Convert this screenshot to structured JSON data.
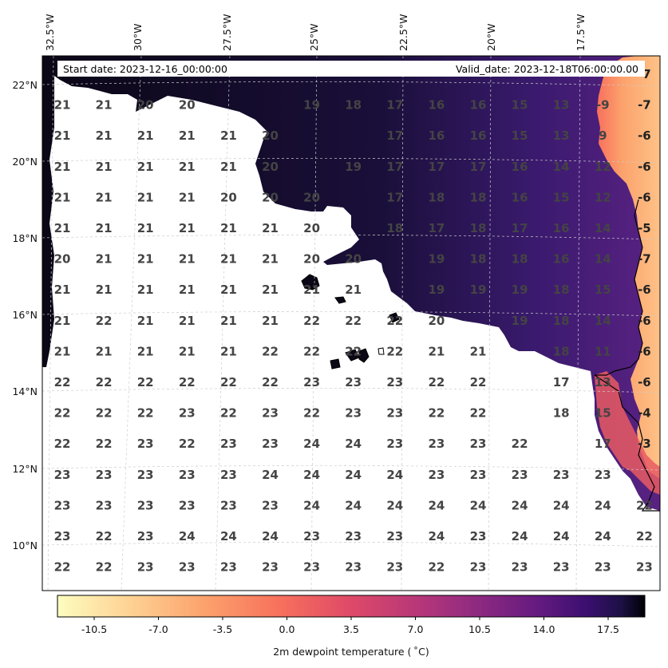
{
  "header": {
    "start_date": "Start date: 2023-12-16_00:00:00",
    "valid_date": "Valid_date: 2023-12-18T06:00:00.00"
  },
  "lon_labels": [
    "32.5°W",
    "30°W",
    "27.5°W",
    "25°W",
    "22.5°W",
    "20°W",
    "17.5°W"
  ],
  "lat_labels": [
    "22°N",
    "20°N",
    "18°N",
    "16°N",
    "14°N",
    "12°N",
    "10°N"
  ],
  "colorbar": {
    "label": "2m dewpoint temperature ($^\\circ$C)",
    "label_display": "2m dewpoint temperature ( ˚C)",
    "ticks": [
      "-10.5",
      "-7.0",
      "-3.5",
      "0.0",
      "3.5",
      "7.0",
      "10.5",
      "14.0",
      "17.5"
    ],
    "tick_values": [
      -10.5,
      -7.0,
      -3.5,
      0.0,
      3.5,
      7.0,
      10.5,
      14.0,
      17.5
    ],
    "range": [
      -12.5,
      19.5
    ],
    "colormap": "magma_r"
  },
  "grid_values": [
    [
      "",
      "",
      "",
      "",
      "",
      "",
      "",
      "",
      "",
      "",
      "",
      "",
      "",
      "",
      "-7"
    ],
    [
      "21",
      "21",
      "20",
      "20",
      "",
      "",
      "19",
      "18",
      "17",
      "16",
      "16",
      "15",
      "13",
      "-9",
      "-7"
    ],
    [
      "21",
      "21",
      "21",
      "21",
      "21",
      "20",
      "",
      "",
      "17",
      "16",
      "16",
      "15",
      "13",
      "9",
      "-6"
    ],
    [
      "21",
      "21",
      "21",
      "21",
      "21",
      "20",
      "",
      "19",
      "17",
      "17",
      "17",
      "16",
      "14",
      "12",
      "-6"
    ],
    [
      "21",
      "21",
      "21",
      "21",
      "20",
      "20",
      "20",
      "",
      "17",
      "18",
      "18",
      "16",
      "15",
      "12",
      "-6"
    ],
    [
      "21",
      "21",
      "21",
      "21",
      "21",
      "21",
      "20",
      "",
      "18",
      "17",
      "18",
      "17",
      "16",
      "14",
      "-5"
    ],
    [
      "20",
      "21",
      "21",
      "21",
      "21",
      "21",
      "20",
      "20",
      "",
      "19",
      "18",
      "18",
      "16",
      "14",
      "-7"
    ],
    [
      "21",
      "21",
      "21",
      "21",
      "21",
      "21",
      "21",
      "21",
      "",
      "19",
      "19",
      "19",
      "18",
      "15",
      "-6"
    ],
    [
      "21",
      "22",
      "21",
      "21",
      "21",
      "21",
      "22",
      "22",
      "22",
      "20",
      "",
      "19",
      "18",
      "14",
      "-6"
    ],
    [
      "21",
      "21",
      "21",
      "21",
      "21",
      "22",
      "22",
      "22",
      "22",
      "21",
      "21",
      "",
      "18",
      "11",
      "-6"
    ],
    [
      "22",
      "22",
      "22",
      "22",
      "22",
      "22",
      "23",
      "23",
      "23",
      "22",
      "22",
      "",
      "17",
      "13",
      "-6"
    ],
    [
      "22",
      "22",
      "22",
      "23",
      "22",
      "23",
      "22",
      "23",
      "23",
      "22",
      "22",
      "",
      "18",
      "15",
      "-4"
    ],
    [
      "22",
      "22",
      "23",
      "22",
      "23",
      "23",
      "24",
      "24",
      "23",
      "23",
      "23",
      "22",
      "",
      "17",
      "-3"
    ],
    [
      "23",
      "23",
      "23",
      "23",
      "23",
      "24",
      "24",
      "24",
      "24",
      "23",
      "23",
      "23",
      "23",
      "23",
      ""
    ],
    [
      "23",
      "23",
      "23",
      "23",
      "23",
      "23",
      "24",
      "24",
      "24",
      "24",
      "24",
      "24",
      "24",
      "24",
      "22"
    ],
    [
      "23",
      "22",
      "23",
      "24",
      "24",
      "24",
      "23",
      "23",
      "23",
      "24",
      "23",
      "24",
      "24",
      "24",
      "22"
    ],
    [
      "22",
      "22",
      "23",
      "23",
      "23",
      "23",
      "23",
      "23",
      "23",
      "22",
      "23",
      "23",
      "23",
      "23",
      "23"
    ]
  ],
  "colors": {
    "land_dark": "#0b0716",
    "land_purple": "#3a1a6e",
    "coastal_orange": "#fca26c",
    "ocean": "#ffffff",
    "value_text": "#444444",
    "header_box": "#ffffff"
  }
}
